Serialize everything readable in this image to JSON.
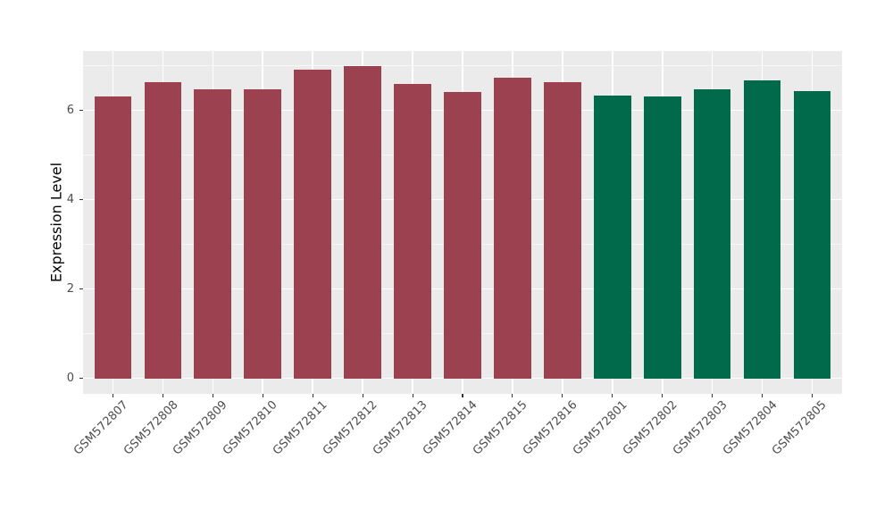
{
  "chart_data": {
    "type": "bar",
    "title": "",
    "xlabel": "",
    "ylabel": "Expression Level",
    "categories": [
      "GSM572807",
      "GSM572808",
      "GSM572809",
      "GSM572810",
      "GSM572811",
      "GSM572812",
      "GSM572813",
      "GSM572814",
      "GSM572815",
      "GSM572816",
      "GSM572801",
      "GSM572802",
      "GSM572803",
      "GSM572804",
      "GSM572805"
    ],
    "values": [
      6.31,
      6.63,
      6.48,
      6.48,
      6.92,
      6.99,
      6.59,
      6.41,
      6.73,
      6.63,
      6.34,
      6.31,
      6.48,
      6.68,
      6.43
    ],
    "bar_groups": [
      "red",
      "red",
      "red",
      "red",
      "red",
      "red",
      "red",
      "red",
      "red",
      "red",
      "green",
      "green",
      "green",
      "green",
      "green"
    ],
    "palette": {
      "red": "#9B4150",
      "green": "#006A4B"
    },
    "yticks": [
      0,
      2,
      4,
      6
    ],
    "minor_yticks": [
      1,
      3,
      5,
      7
    ],
    "ylim": [
      0,
      6.99
    ],
    "ylim_expanded": [
      -0.35,
      7.33
    ],
    "legend": "none",
    "grid": true,
    "panel_bg": "#EBEBEB",
    "grid_major_color": "#FFFFFF",
    "grid_minor_color": "#F7F7F7",
    "axis_text_color": "#4D4D4D",
    "tick_color": "#333333",
    "bar_width_fraction": 0.75
  }
}
